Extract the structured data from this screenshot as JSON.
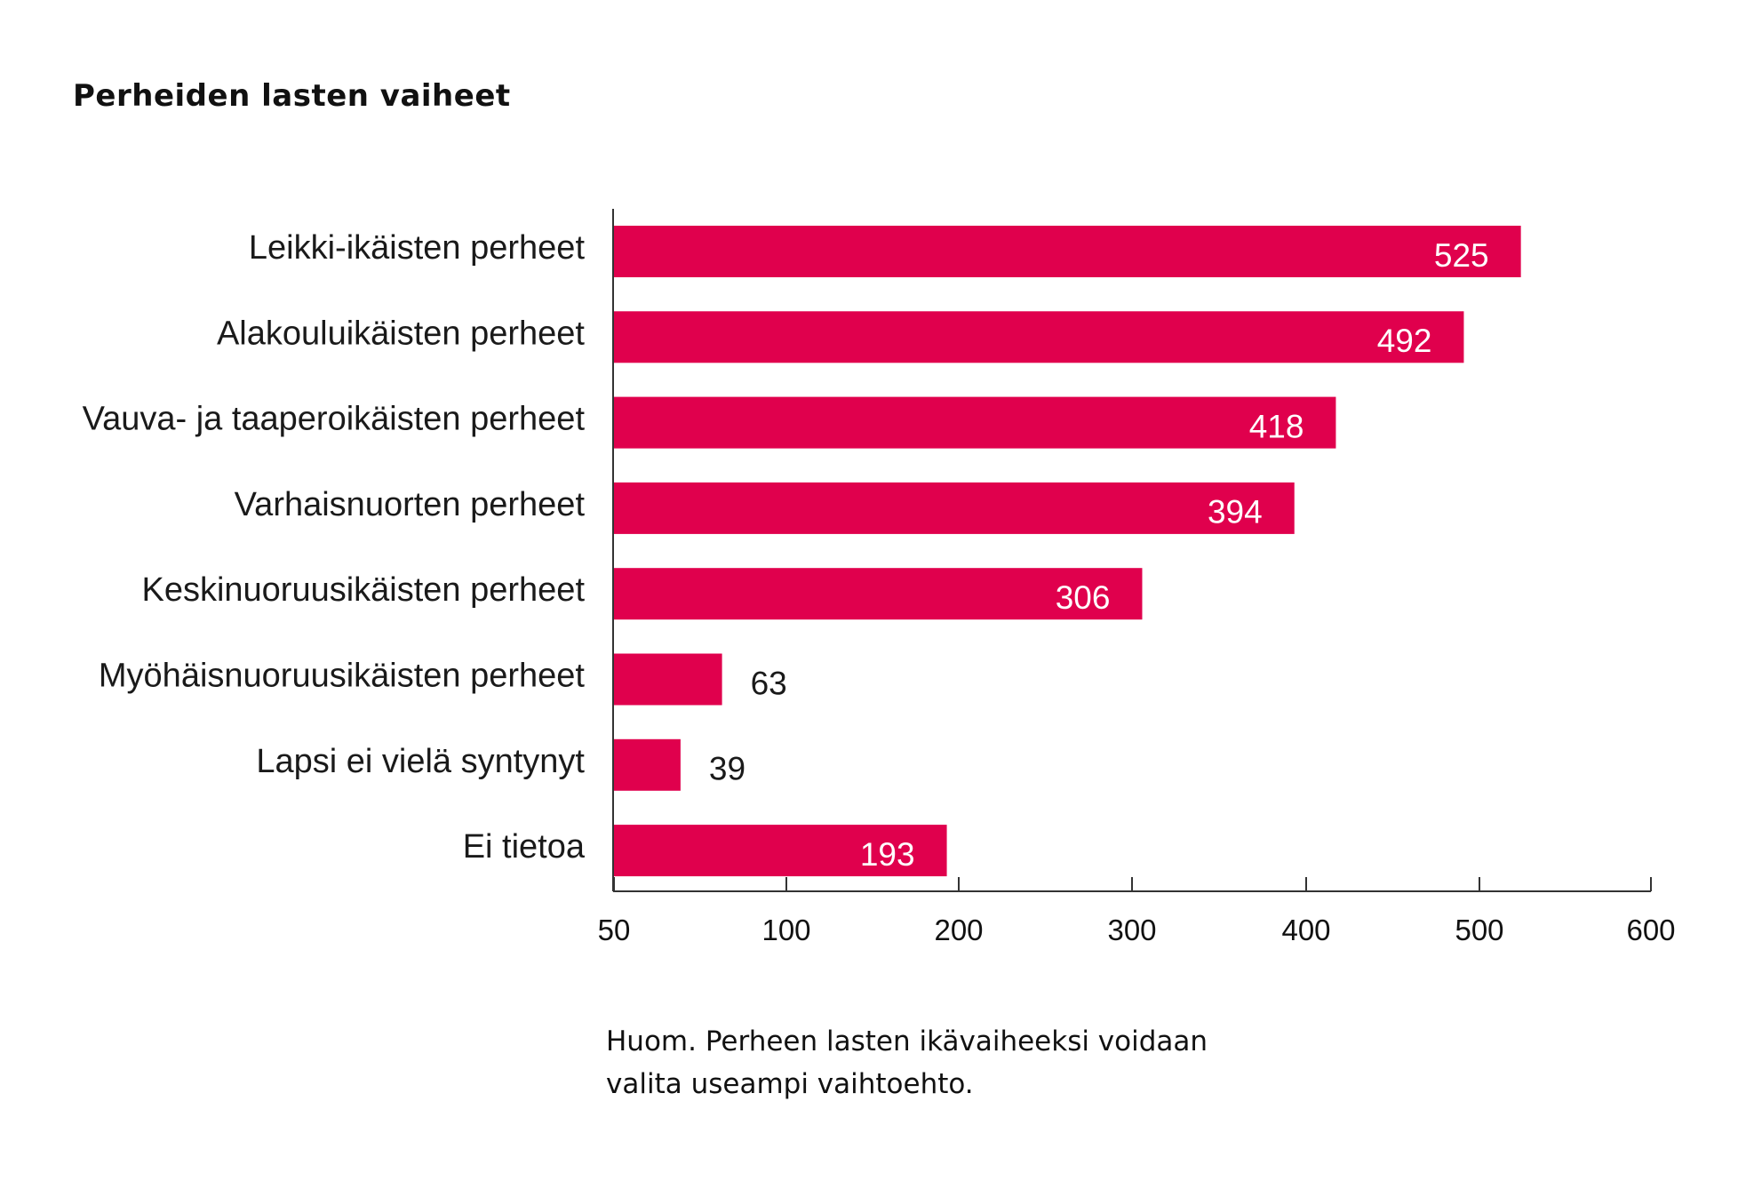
{
  "chart_data": {
    "type": "bar",
    "orientation": "horizontal",
    "title": "Perheiden lasten vaiheet",
    "categories": [
      "Leikki-ikäisten perheet",
      "Alakouluikäisten perheet",
      "Vauva- ja taaperoikäisten perheet",
      "Varhaisnuorten perheet",
      "Keskinuoruusikäisten perheet",
      "Myöhäisnuoruusikäisten perheet",
      "Lapsi ei vielä syntynyt",
      "Ei tietoa"
    ],
    "values": [
      525,
      492,
      418,
      394,
      306,
      63,
      39,
      193
    ],
    "x_ticks": [
      50,
      100,
      200,
      300,
      400,
      500,
      600
    ],
    "xlabel": "",
    "ylabel": "",
    "bar_color": "#e0004d",
    "inside_label_color": "#ffffff",
    "outside_label_color": "#1a1a1a",
    "grid": false,
    "legend": "none",
    "note": "Huom. Perheen lasten ikävaiheeksi voidaan valita useampi vaihtoehto."
  }
}
